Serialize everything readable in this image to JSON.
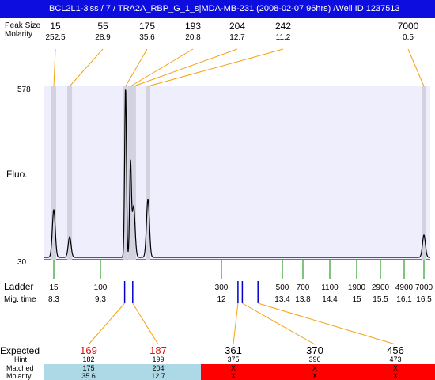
{
  "window_title": "BCL2L1-3'ss / 7 / TRA2A_RBP_G_1_s|MDA-MB-231 (2008-02-07 96hrs) /Well ID 1237513",
  "labels": {
    "peaks_size": "Peak Size",
    "peaks_molarity": "Molarity",
    "fluo": "Fluo.",
    "ladder": "Ladder",
    "mig_time": "Mig. time",
    "expected": "Expected",
    "hint": "Hint",
    "matched": "Matched",
    "molarity": "Molarity"
  },
  "colors": {
    "title_bg": "#0d0ddf",
    "plot_bg": "#eeeefc",
    "peak_band": "#d2d2e0",
    "orange": "#f5a00f",
    "green": "#008800",
    "blue": "#0000cc",
    "red_text": "#e01010",
    "matched_ok": "#add8e6",
    "matched_bad": "#ff0000"
  },
  "chart_data": {
    "type": "line",
    "ylim": [
      30,
      578
    ],
    "y_ticks": [
      "578",
      "30"
    ],
    "peaks": [
      {
        "size": "15",
        "molarity": "252.5",
        "mig_time": 8.3,
        "height": 0.28
      },
      {
        "size": "55",
        "molarity": "28.9",
        "mig_time": 8.64,
        "height": 0.12
      },
      {
        "size": "175",
        "molarity": "35.6",
        "mig_time": 9.86,
        "height": 1.0
      },
      {
        "size": "193",
        "molarity": "20.8",
        "mig_time": 9.97,
        "height": 0.54
      },
      {
        "size": "204",
        "molarity": "12.7",
        "mig_time": 10.04,
        "height": 0.3
      },
      {
        "size": "242",
        "molarity": "11.2",
        "mig_time": 10.36,
        "height": 0.34
      },
      {
        "size": "7000",
        "molarity": "0.5",
        "mig_time": 16.5,
        "height": 0.13
      }
    ],
    "ladder": [
      {
        "bp": "15",
        "mig_time": "8.3",
        "t": 8.3
      },
      {
        "bp": "100",
        "mig_time": "9.3",
        "t": 9.3
      },
      {
        "bp": "300",
        "mig_time": "12",
        "t": 12.0
      },
      {
        "bp": "500",
        "mig_time": "13.4",
        "t": 13.4
      },
      {
        "bp": "700",
        "mig_time": "13.8",
        "t": 13.8
      },
      {
        "bp": "1100",
        "mig_time": "14.4",
        "t": 14.4
      },
      {
        "bp": "1900",
        "mig_time": "15",
        "t": 15.0
      },
      {
        "bp": "2900",
        "mig_time": "15.5",
        "t": 15.5
      },
      {
        "bp": "4900",
        "mig_time": "16.1",
        "t": 16.1
      },
      {
        "bp": "7000",
        "mig_time": "16.5",
        "t": 16.5
      }
    ],
    "expected": [
      {
        "expected": "169",
        "hint": "182",
        "matched": "175",
        "molarity": "35.6",
        "status": "matched",
        "hint_t": 9.84
      },
      {
        "expected": "187",
        "hint": "199",
        "matched": "204",
        "molarity": "12.7",
        "status": "matched",
        "hint_t": 10.02
      },
      {
        "expected": "361",
        "hint": "375",
        "matched": "X",
        "molarity": "X",
        "status": "unmatched",
        "hint_t": 12.38
      },
      {
        "expected": "370",
        "hint": "396",
        "matched": "X",
        "molarity": "X",
        "status": "unmatched",
        "hint_t": 12.48
      },
      {
        "expected": "456",
        "hint": "473",
        "matched": "X",
        "molarity": "X",
        "status": "unmatched",
        "hint_t": 12.84
      }
    ]
  }
}
